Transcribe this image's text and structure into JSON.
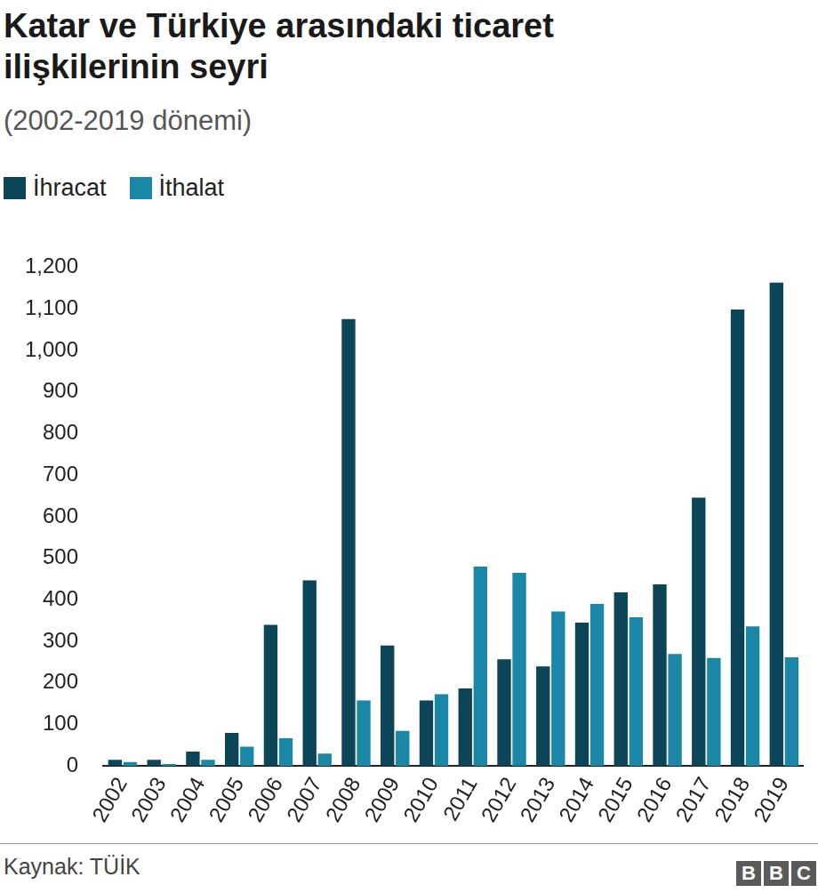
{
  "chart_data": {
    "type": "bar",
    "title": "Katar ve Türkiye arasındaki ticaret ilişkilerinin seyri",
    "subtitle": "(2002-2019 dönemi)",
    "source": "Kaynak: TÜİK",
    "logo": "BBC",
    "categories": [
      "2002",
      "2003",
      "2004",
      "2005",
      "2006",
      "2007",
      "2008",
      "2009",
      "2010",
      "2011",
      "2012",
      "2013",
      "2014",
      "2015",
      "2016",
      "2017",
      "2018",
      "2019"
    ],
    "series": [
      {
        "name": "İhracat",
        "color": "#0b4557",
        "values": [
          15,
          15,
          35,
          80,
          340,
          447,
          1075,
          290,
          158,
          187,
          257,
          240,
          345,
          418,
          437,
          646,
          1098,
          1163
        ]
      },
      {
        "name": "İthalat",
        "color": "#1b87a6",
        "values": [
          10,
          5,
          15,
          47,
          67,
          30,
          158,
          85,
          173,
          480,
          465,
          372,
          390,
          358,
          270,
          260,
          336,
          262
        ]
      }
    ],
    "ylim": [
      0,
      1200
    ],
    "yticks": [
      0,
      100,
      200,
      300,
      400,
      500,
      600,
      700,
      800,
      900,
      {
        "value": 1000,
        "label": "1,000"
      },
      {
        "value": 1100,
        "label": "1,100"
      },
      {
        "value": 1200,
        "label": "1,200"
      }
    ],
    "grid": false,
    "legend": "top-left"
  }
}
